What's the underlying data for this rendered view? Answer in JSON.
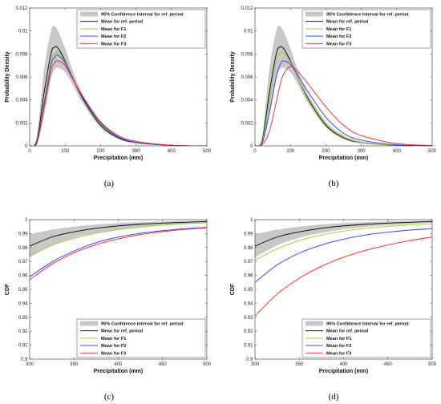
{
  "figure": {
    "panel_labels": [
      "(a)",
      "(b)",
      "(c)",
      "(d)"
    ]
  },
  "legend_entries": [
    {
      "label": "95% Confidence Interval for ref. period",
      "color": "#c8c8c8",
      "kind": "band"
    },
    {
      "label": "Mean for ref. period",
      "color": "#000000",
      "kind": "line"
    },
    {
      "label": "Mean for F1",
      "color": "#9acd32",
      "kind": "line"
    },
    {
      "label": "Mean for F2",
      "color": "#1f3fff",
      "kind": "line"
    },
    {
      "label": "Mean for F3",
      "color": "#ff2020",
      "kind": "line"
    }
  ],
  "chart_data": [
    {
      "panel": "(a)",
      "type": "line",
      "title": "",
      "xlabel": "Precipitation (mm)",
      "ylabel": "Probability Density",
      "xlim": [
        0,
        500
      ],
      "ylim": [
        0,
        0.012
      ],
      "xticks": [
        0,
        100,
        200,
        300,
        400,
        500
      ],
      "yticks": [
        0,
        0.002,
        0.004,
        0.006,
        0.008,
        0.01,
        0.012
      ],
      "ytick_labels": [
        "0",
        "0.002",
        "0.004",
        "0.006",
        "0.008",
        "0.01",
        "0.012"
      ],
      "legend_position": "top-right",
      "x": [
        0,
        20,
        40,
        60,
        70,
        80,
        100,
        120,
        150,
        200,
        250,
        300,
        400,
        500
      ],
      "band": {
        "lower": [
          0,
          0.0001,
          0.0025,
          0.0058,
          0.0066,
          0.0068,
          0.0064,
          0.0054,
          0.0037,
          0.0016,
          0.0006,
          0.0002,
          2e-05,
          0
        ],
        "upper": [
          0,
          0.0008,
          0.0065,
          0.01,
          0.0104,
          0.01,
          0.0085,
          0.0067,
          0.0045,
          0.0021,
          0.0009,
          0.0004,
          6e-05,
          0
        ]
      },
      "series": [
        {
          "name": "Mean for ref. period",
          "color": "#000000",
          "values": [
            0,
            0.0004,
            0.0045,
            0.008,
            0.0086,
            0.0085,
            0.0074,
            0.006,
            0.0041,
            0.0018,
            0.0007,
            0.0003,
            4e-05,
            0
          ]
        },
        {
          "name": "Mean for F1",
          "color": "#9acd32",
          "values": [
            0,
            0.0003,
            0.0038,
            0.0073,
            0.008,
            0.0081,
            0.0073,
            0.006,
            0.0042,
            0.0019,
            0.0008,
            0.0003,
            5e-05,
            0
          ]
        },
        {
          "name": "Mean for F2",
          "color": "#1f3fff",
          "values": [
            0,
            0.0003,
            0.0035,
            0.007,
            0.0077,
            0.0079,
            0.0072,
            0.006,
            0.0042,
            0.002,
            0.0008,
            0.0003,
            5e-05,
            0
          ]
        },
        {
          "name": "Mean for F3",
          "color": "#ff2020",
          "values": [
            0,
            0.0002,
            0.0032,
            0.0065,
            0.0072,
            0.0074,
            0.007,
            0.0059,
            0.0043,
            0.0021,
            0.0009,
            0.0004,
            6e-05,
            0
          ]
        }
      ]
    },
    {
      "panel": "(b)",
      "type": "line",
      "title": "",
      "xlabel": "Precipitation (mm)",
      "ylabel": "Probability Density",
      "xlim": [
        0,
        500
      ],
      "ylim": [
        0,
        0.012
      ],
      "xticks": [
        0,
        100,
        200,
        300,
        400,
        500
      ],
      "yticks": [
        0,
        0.002,
        0.004,
        0.006,
        0.008,
        0.01,
        0.012
      ],
      "ytick_labels": [
        "0",
        "0.002",
        "0.004",
        "0.006",
        "0.008",
        "0.01",
        "0.012"
      ],
      "legend_position": "top-right",
      "x": [
        0,
        20,
        40,
        60,
        70,
        80,
        100,
        120,
        150,
        200,
        250,
        300,
        400,
        500
      ],
      "band": {
        "lower": [
          0,
          0.0001,
          0.0025,
          0.0058,
          0.0066,
          0.0068,
          0.0064,
          0.0054,
          0.0037,
          0.0016,
          0.0006,
          0.0002,
          2e-05,
          0
        ],
        "upper": [
          0,
          0.0008,
          0.0065,
          0.01,
          0.0104,
          0.01,
          0.0085,
          0.0067,
          0.0045,
          0.0021,
          0.0009,
          0.0004,
          6e-05,
          0
        ]
      },
      "series": [
        {
          "name": "Mean for ref. period",
          "color": "#000000",
          "values": [
            0,
            0.0004,
            0.0045,
            0.008,
            0.0086,
            0.0085,
            0.0074,
            0.006,
            0.0041,
            0.0018,
            0.0007,
            0.0003,
            4e-05,
            0
          ]
        },
        {
          "name": "Mean for F1",
          "color": "#9acd32",
          "values": [
            0,
            0.0003,
            0.0038,
            0.0073,
            0.008,
            0.0081,
            0.0073,
            0.006,
            0.0042,
            0.0019,
            0.0008,
            0.0003,
            5e-05,
            0
          ]
        },
        {
          "name": "Mean for F2",
          "color": "#1f3fff",
          "values": [
            0,
            0.0002,
            0.0028,
            0.006,
            0.007,
            0.0074,
            0.0071,
            0.0062,
            0.0047,
            0.0025,
            0.0011,
            0.0005,
            9e-05,
            1e-05
          ]
        },
        {
          "name": "Mean for F3",
          "color": "#ff2020",
          "values": [
            0,
            0.0001,
            0.0012,
            0.0038,
            0.0052,
            0.0062,
            0.0069,
            0.0065,
            0.0054,
            0.0034,
            0.0018,
            0.0009,
            0.0002,
            4e-05
          ]
        }
      ]
    },
    {
      "panel": "(c)",
      "type": "line",
      "title": "",
      "xlabel": "Precipitation (mm)",
      "ylabel": "CDF",
      "xlim": [
        300,
        500
      ],
      "ylim": [
        0.9,
        1
      ],
      "xticks": [
        300,
        350,
        400,
        450,
        500
      ],
      "yticks": [
        0.9,
        0.91,
        0.92,
        0.93,
        0.94,
        0.95,
        0.96,
        0.97,
        0.98,
        0.99,
        1
      ],
      "ytick_labels": [
        "0.9",
        "0.91",
        "0.92",
        "0.93",
        "0.94",
        "0.95",
        "0.96",
        "0.97",
        "0.98",
        "0.99",
        "1"
      ],
      "legend_position": "bottom-right",
      "x": [
        300,
        325,
        350,
        375,
        400,
        425,
        450,
        475,
        500
      ],
      "band": {
        "lower": [
          0.973,
          0.9815,
          0.987,
          0.9905,
          0.993,
          0.9948,
          0.996,
          0.997,
          0.9977
        ],
        "upper": [
          0.9895,
          0.9928,
          0.995,
          0.9965,
          0.9975,
          0.9982,
          0.9987,
          0.9991,
          0.9993
        ]
      },
      "series": [
        {
          "name": "Mean for ref. period",
          "color": "#000000",
          "values": [
            0.981,
            0.9875,
            0.9912,
            0.9938,
            0.9955,
            0.9967,
            0.9975,
            0.9981,
            0.9986
          ]
        },
        {
          "name": "Mean for F1",
          "color": "#9acd32",
          "values": [
            0.974,
            0.9815,
            0.9865,
            0.9902,
            0.9928,
            0.9946,
            0.996,
            0.997,
            0.9977
          ]
        },
        {
          "name": "Mean for F2",
          "color": "#1f3fff",
          "values": [
            0.959,
            0.9695,
            0.9775,
            0.9835,
            0.9875,
            0.9902,
            0.9921,
            0.9935,
            0.9945
          ]
        },
        {
          "name": "Mean for F3",
          "color": "#ff2020",
          "values": [
            0.957,
            0.968,
            0.9762,
            0.982,
            0.9862,
            0.9893,
            0.9914,
            0.993,
            0.9942
          ]
        }
      ]
    },
    {
      "panel": "(d)",
      "type": "line",
      "title": "",
      "xlabel": "Precipitation (mm)",
      "ylabel": "CDF",
      "xlim": [
        300,
        500
      ],
      "ylim": [
        0.9,
        1
      ],
      "xticks": [
        300,
        350,
        400,
        450,
        500
      ],
      "yticks": [
        0.9,
        0.91,
        0.92,
        0.93,
        0.94,
        0.95,
        0.96,
        0.97,
        0.98,
        0.99,
        1
      ],
      "ytick_labels": [
        "0.9",
        "0.91",
        "0.92",
        "0.93",
        "0.94",
        "0.95",
        "0.96",
        "0.97",
        "0.98",
        "0.99",
        "1"
      ],
      "legend_position": "bottom-right",
      "x": [
        300,
        325,
        350,
        375,
        400,
        425,
        450,
        475,
        500
      ],
      "band": {
        "lower": [
          0.973,
          0.9815,
          0.987,
          0.9905,
          0.993,
          0.9948,
          0.996,
          0.997,
          0.9977
        ],
        "upper": [
          0.9895,
          0.9928,
          0.995,
          0.9965,
          0.9975,
          0.9982,
          0.9987,
          0.9991,
          0.9993
        ]
      },
      "series": [
        {
          "name": "Mean for ref. period",
          "color": "#000000",
          "values": [
            0.981,
            0.9875,
            0.9912,
            0.9938,
            0.9955,
            0.9967,
            0.9975,
            0.9981,
            0.9986
          ]
        },
        {
          "name": "Mean for F1",
          "color": "#9acd32",
          "values": [
            0.971,
            0.979,
            0.985,
            0.989,
            0.9918,
            0.9938,
            0.9952,
            0.9962,
            0.997
          ]
        },
        {
          "name": "Mean for F2",
          "color": "#1f3fff",
          "values": [
            0.955,
            0.9675,
            0.976,
            0.9818,
            0.986,
            0.989,
            0.991,
            0.9925,
            0.9935
          ]
        },
        {
          "name": "Mean for F3",
          "color": "#ff2020",
          "values": [
            0.931,
            0.9465,
            0.958,
            0.9665,
            0.973,
            0.978,
            0.9818,
            0.985,
            0.9875
          ]
        }
      ]
    }
  ]
}
